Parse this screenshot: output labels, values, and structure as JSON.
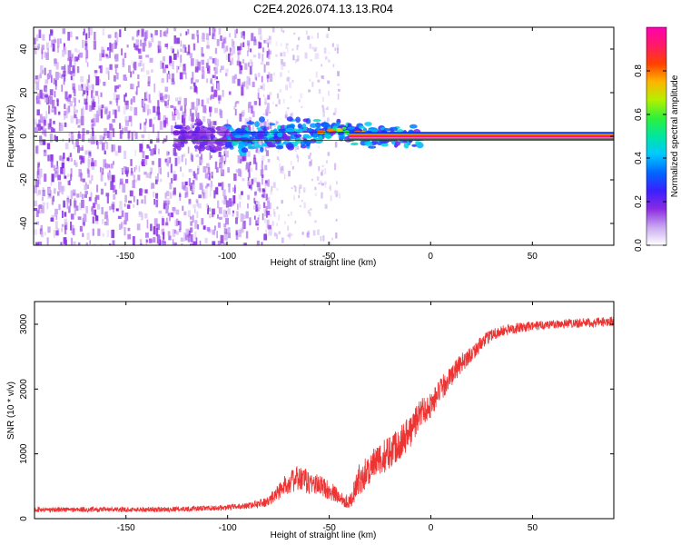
{
  "title": "C2E4.2026.074.13.13.R04",
  "chart_data": [
    {
      "type": "heatmap",
      "xlabel": "Height of straight line (km)",
      "ylabel": "Frequency (Hz)",
      "xlim": [
        -195,
        90
      ],
      "ylim": [
        -50,
        50
      ],
      "xticks": [
        -150,
        -100,
        -50,
        0,
        50
      ],
      "yticks": [
        -40,
        -20,
        0,
        20,
        40
      ],
      "colorbar": {
        "label": "Normalized spectral amplitude",
        "range": [
          0.0,
          1.0
        ],
        "ticks": [
          0.0,
          0.2,
          0.4,
          0.6,
          0.8
        ],
        "colormap": [
          "#ffffff",
          "#c9a8f0",
          "#8a2be2",
          "#3a1fff",
          "#0066ff",
          "#00c8ff",
          "#00e6a0",
          "#2ef03a",
          "#b4f000",
          "#ffb400",
          "#ff4000",
          "#ff1a66",
          "#ff00b0"
        ]
      },
      "features": [
        {
          "name": "carrier line",
          "freq_hz": 0,
          "x_start_km": -40,
          "x_end_km": 90,
          "amplitude": 0.95
        },
        {
          "name": "echo trace",
          "freq_hz_at_x": [
            [
              -125,
              0
            ],
            [
              -95,
              -1
            ],
            [
              -70,
              1
            ],
            [
              -55,
              2
            ],
            [
              -45,
              3
            ],
            [
              -35,
              1
            ],
            [
              -20,
              0
            ],
            [
              -5,
              0
            ]
          ],
          "amplitude": 0.35
        },
        {
          "name": "noise region",
          "x_start_km": -195,
          "x_end_km": -85,
          "amplitude": 0.15
        },
        {
          "name": "sparse noise",
          "x_start_km": -85,
          "x_end_km": -45,
          "amplitude": 0.06
        }
      ]
    },
    {
      "type": "line",
      "xlabel": "Height of straight line (km)",
      "ylabel": "SNR (10 * v/v)",
      "xlim": [
        -195,
        90
      ],
      "ylim": [
        0,
        3350
      ],
      "xticks": [
        -150,
        -100,
        -50,
        0,
        50
      ],
      "yticks": [
        0,
        1000,
        2000,
        3000
      ],
      "series": [
        {
          "name": "SNR",
          "color": "#ee3333",
          "x": [
            -195,
            -180,
            -160,
            -140,
            -120,
            -100,
            -90,
            -80,
            -75,
            -70,
            -65,
            -60,
            -55,
            -50,
            -45,
            -40,
            -35,
            -30,
            -25,
            -20,
            -15,
            -10,
            -5,
            0,
            5,
            10,
            15,
            20,
            25,
            30,
            40,
            50,
            60,
            70,
            80,
            90
          ],
          "center": [
            140,
            140,
            140,
            140,
            150,
            170,
            200,
            260,
            420,
            560,
            620,
            560,
            520,
            440,
            330,
            250,
            620,
            780,
            900,
            1050,
            1200,
            1350,
            1650,
            1750,
            2000,
            2200,
            2400,
            2550,
            2700,
            2850,
            2930,
            2970,
            3000,
            3020,
            3020,
            3050
          ],
          "spread": [
            80,
            80,
            80,
            80,
            80,
            85,
            95,
            150,
            280,
            330,
            420,
            380,
            320,
            300,
            250,
            200,
            500,
            520,
            500,
            550,
            550,
            520,
            450,
            400,
            380,
            330,
            300,
            260,
            220,
            200,
            160,
            150,
            150,
            150,
            150,
            150
          ]
        }
      ]
    }
  ]
}
